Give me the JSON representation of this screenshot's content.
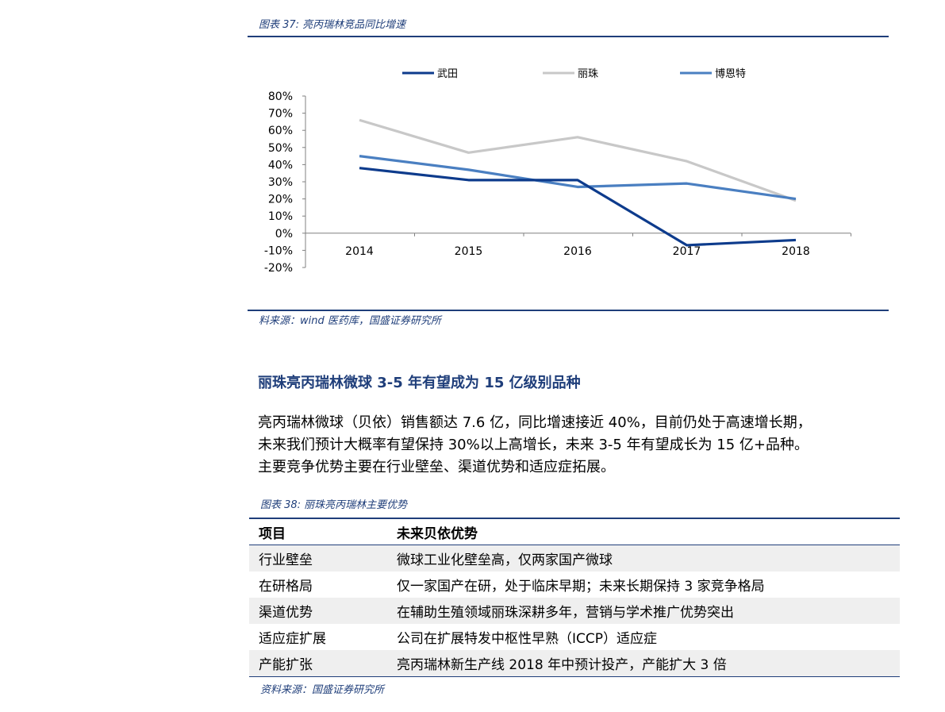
{
  "figure37": {
    "caption": "图表 37:  亮丙瑞林竞品同比增速",
    "source": "料来源：wind 医药库，国盛证券研究所"
  },
  "chart_data": {
    "type": "line",
    "x": [
      "2014",
      "2015",
      "2016",
      "2017",
      "2018"
    ],
    "series": [
      {
        "name": "武田",
        "values": [
          0.38,
          0.31,
          0.31,
          -0.07,
          -0.04
        ],
        "color": "#0d3b8c"
      },
      {
        "name": "丽珠",
        "values": [
          0.66,
          0.47,
          0.56,
          0.42,
          0.19
        ],
        "color": "#c8c8c8"
      },
      {
        "name": "博恩特",
        "values": [
          0.45,
          0.37,
          0.27,
          0.29,
          0.2
        ],
        "color": "#4a7fc1"
      }
    ],
    "yticks": [
      "80%",
      "70%",
      "60%",
      "50%",
      "40%",
      "30%",
      "20%",
      "10%",
      "0%",
      "-10%",
      "-20%"
    ],
    "ylim": [
      -0.2,
      0.8
    ],
    "grid": false,
    "legend": "top"
  },
  "section": {
    "heading": "丽珠亮丙瑞林微球 3-5 年有望成为 15 亿级别品种",
    "paragraph_lines": [
      "亮丙瑞林微球（贝依）销售额达 7.6 亿，同比增速接近 40%，目前仍处于高速增长期，",
      "未来我们预计大概率有望保持 30%以上高增长，未来 3-5 年有望成长为 15 亿+品种。",
      "主要竞争优势主要在行业壁垒、渠道优势和适应症拓展。"
    ]
  },
  "figure38": {
    "caption": "图表 38:  丽珠亮丙瑞林主要优势",
    "headers": [
      "项目",
      "未来贝依优势"
    ],
    "rows": [
      [
        "行业壁垒",
        "微球工业化壁垒高，仅两家国产微球"
      ],
      [
        "在研格局",
        "仅一家国产在研，处于临床早期；未来长期保持 3 家竞争格局"
      ],
      [
        "渠道优势",
        "在辅助生殖领域丽珠深耕多年，营销与学术推广优势突出"
      ],
      [
        "适应症扩展",
        "公司在扩展特发中枢性早熟（ICCP）适应症"
      ],
      [
        "产能扩张",
        "亮丙瑞林新生产线 2018 年中预计投产，产能扩大 3 倍"
      ]
    ],
    "source": "资料来源：国盛证券研究所"
  }
}
